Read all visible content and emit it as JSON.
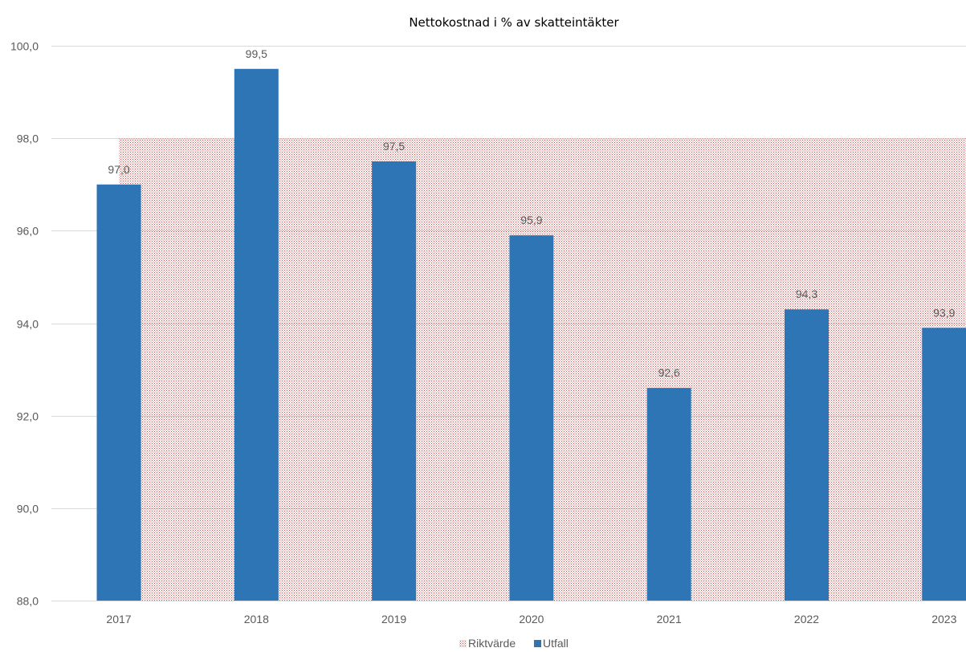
{
  "chart_data": {
    "type": "bar",
    "title": "Nettokostnad i % av skatteintäkter",
    "categories": [
      "2017",
      "2018",
      "2019",
      "2020",
      "2021",
      "2022",
      "2023"
    ],
    "series": [
      {
        "name": "Riktvärde",
        "kind": "area",
        "pattern": "dotted",
        "color": "#c00000",
        "values": [
          98.0,
          98.0,
          98.0,
          98.0,
          98.0,
          98.0,
          98.0
        ]
      },
      {
        "name": "Utfall",
        "kind": "bar",
        "color": "#2e75b6",
        "values": [
          97.0,
          99.5,
          97.5,
          95.9,
          92.6,
          94.3,
          93.9
        ],
        "labels": [
          "97,0",
          "99,5",
          "97,5",
          "95,9",
          "92,6",
          "94,3",
          "93,9"
        ]
      }
    ],
    "ylim": [
      88,
      100
    ],
    "yticks": [
      88,
      90,
      92,
      94,
      96,
      98,
      100
    ],
    "ytick_labels": [
      "88,0",
      "90,0",
      "92,0",
      "94,0",
      "96,0",
      "98,0",
      "100,0"
    ],
    "grid": true,
    "legend": "bottom-center"
  }
}
